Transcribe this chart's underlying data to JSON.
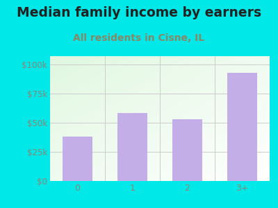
{
  "title": "Median family income by earners",
  "subtitle": "All residents in Cisne, IL",
  "categories": [
    "0",
    "1",
    "2",
    "3+"
  ],
  "values": [
    38000,
    58000,
    53000,
    93000
  ],
  "bar_color": "#c4aee8",
  "title_color": "#222222",
  "subtitle_color": "#888866",
  "yticks": [
    0,
    25000,
    50000,
    75000,
    100000
  ],
  "ytick_labels": [
    "$0",
    "$25k",
    "$50k",
    "$75k",
    "$100k"
  ],
  "ymax": 107000,
  "background_outer": "#00e8e8",
  "tick_color": "#888877",
  "title_fontsize": 13.5,
  "subtitle_fontsize": 10,
  "bar_width": 0.55
}
